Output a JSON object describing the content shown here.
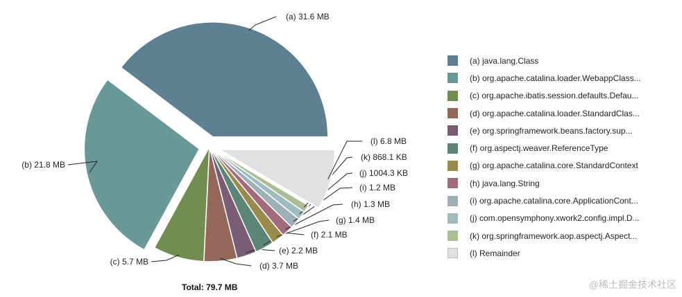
{
  "chart_data": {
    "type": "pie",
    "slices": [
      {
        "key": "(a)",
        "name": "java.lang.Class",
        "legend_label": "(a)  java.lang.Class",
        "value_label": "(a)  31.6 MB",
        "value_mb": 31.6,
        "color": "#5f7f92"
      },
      {
        "key": "(b)",
        "name": "org.apache.catalina.loader.WebappClass...",
        "legend_label": "(b)  org.apache.catalina.loader.WebappClass...",
        "value_label": "(b)  21.8 MB",
        "value_mb": 21.8,
        "color": "#6a9898"
      },
      {
        "key": "(c)",
        "name": "org.apache.ibatis.session.defaults.Defau...",
        "legend_label": "(c)  org.apache.ibatis.session.defaults.Defau...",
        "value_label": "(c)  5.7 MB",
        "value_mb": 5.7,
        "color": "#718d51"
      },
      {
        "key": "(d)",
        "name": "org.apache.catalina.loader.StandardClas...",
        "legend_label": "(d)  org.apache.catalina.loader.StandardClas...",
        "value_label": "(d)  3.7 MB",
        "value_mb": 3.7,
        "color": "#946858"
      },
      {
        "key": "(e)",
        "name": "org.springframework.beans.factory.sup...",
        "legend_label": "(e)  org.springframework.beans.factory.sup...",
        "value_label": "(e)  2.2 MB",
        "value_mb": 2.2,
        "color": "#7a5d74"
      },
      {
        "key": "(f)",
        "name": "org.aspectj.weaver.ReferenceType",
        "legend_label": "(f)  org.aspectj.weaver.ReferenceType",
        "value_label": "(f)  2.1 MB",
        "value_mb": 2.1,
        "color": "#5c8578"
      },
      {
        "key": "(g)",
        "name": "org.apache.catalina.core.StandardContext",
        "legend_label": "(g)  org.apache.catalina.core.StandardContext",
        "value_label": "(g)  1.4 MB",
        "value_mb": 1.4,
        "color": "#9a8a4c"
      },
      {
        "key": "(h)",
        "name": "java.lang.String",
        "legend_label": "(h)  java.lang.String",
        "value_label": "(h)  1.3 MB",
        "value_mb": 1.3,
        "color": "#a26a7d"
      },
      {
        "key": "(i)",
        "name": "org.apache.catalina.core.ApplicationCont...",
        "legend_label": "(i)  org.apache.catalina.core.ApplicationCont...",
        "value_label": "(i)  1.2 MB",
        "value_mb": 1.2,
        "color": "#9db0b8"
      },
      {
        "key": "(j)",
        "name": "com.opensymphony.xwork2.config.impl.D...",
        "legend_label": "(j)  com.opensymphony.xwork2.config.impl.D...",
        "value_label": "(j)  1004.3 KB",
        "value_mb": 0.98,
        "color": "#9ebcbc"
      },
      {
        "key": "(k)",
        "name": "org.springframework.aop.aspectj.Aspect...",
        "legend_label": "(k)  org.springframework.aop.aspectj.Aspect...",
        "value_label": "(k)  868.1 KB",
        "value_mb": 0.85,
        "color": "#abbd95"
      },
      {
        "key": "(l)",
        "name": "Remainder",
        "legend_label": "(l)  Remainder",
        "value_label": "(l)  6.8 MB",
        "value_mb": 6.8,
        "color": "#e0e0e0"
      }
    ],
    "total_label": "Total: 79.7 MB",
    "total_mb": 79.7,
    "legend_position": "right",
    "exploded_slices": [
      "(a)",
      "(b)",
      "(l)"
    ]
  },
  "watermark": "@稀土掘金技术社区"
}
